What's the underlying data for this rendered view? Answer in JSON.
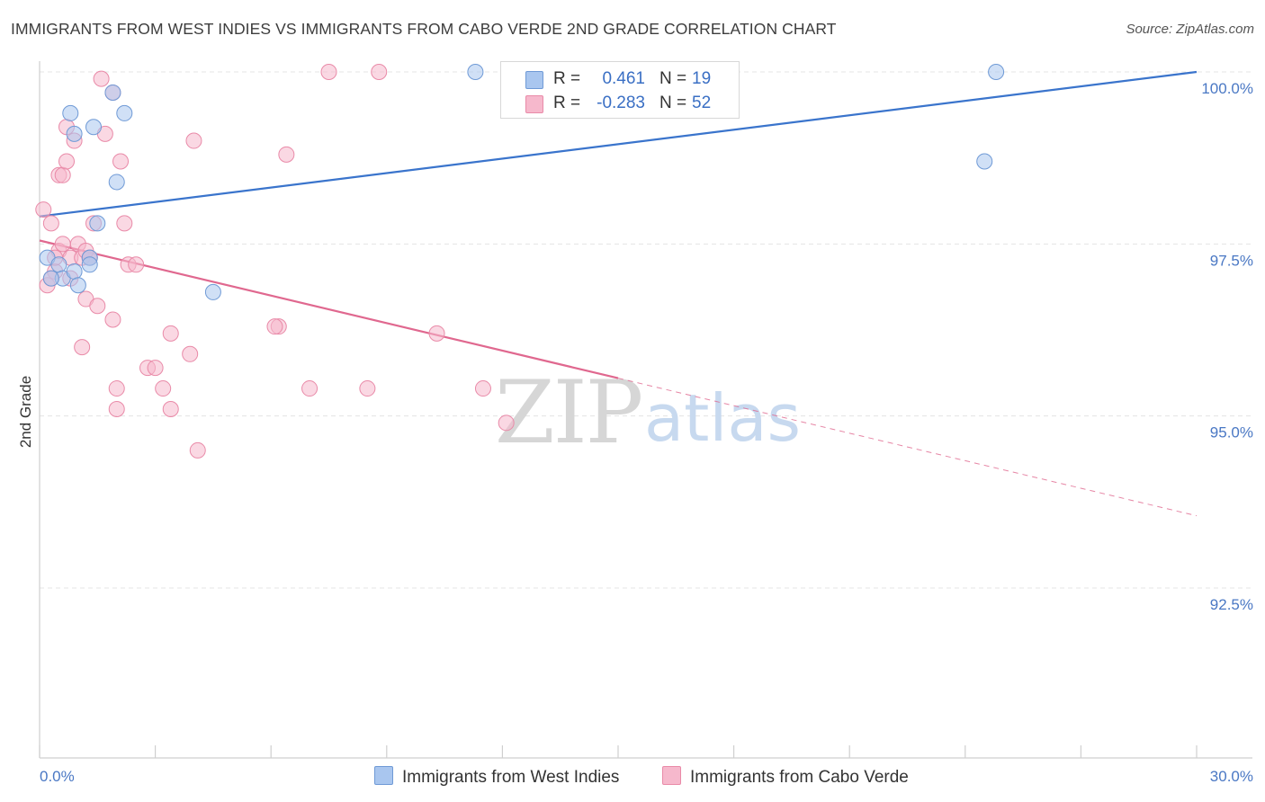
{
  "title": "IMMIGRANTS FROM WEST INDIES VS IMMIGRANTS FROM CABO VERDE 2ND GRADE CORRELATION CHART",
  "source": "Source: ZipAtlas.com",
  "watermark": {
    "zip": "ZIP",
    "atlas": "atlas"
  },
  "colors": {
    "blue_fill": "#a9c6ef",
    "blue_stroke": "#6f9ad6",
    "blue_line": "#3a74cc",
    "pink_fill": "#f6b8cc",
    "pink_stroke": "#e98aa8",
    "pink_line": "#e0688f",
    "tick_text": "#4a78c4"
  },
  "legend": {
    "rows": [
      {
        "r_label": "R =",
        "r_value": "0.461",
        "n_label": "N =",
        "n_value": "19",
        "color": "#a9c6ef"
      },
      {
        "r_label": "R =",
        "r_value": "-0.283",
        "n_label": "N =",
        "n_value": "52",
        "color": "#f6b8cc"
      }
    ]
  },
  "bottom_legend": [
    {
      "label": "Immigrants from West Indies",
      "color": "#a9c6ef"
    },
    {
      "label": "Immigrants from Cabo Verde",
      "color": "#f6b8cc"
    }
  ],
  "chart_data": {
    "type": "scatter",
    "title": "IMMIGRANTS FROM WEST INDIES VS IMMIGRANTS FROM CABO VERDE 2ND GRADE CORRELATION CHART",
    "xlabel": "",
    "ylabel": "2nd Grade",
    "xlim": [
      0,
      30
    ],
    "ylim": [
      90.0,
      100.3
    ],
    "x_tick_labels": [
      {
        "value": 0,
        "label": "0.0%"
      },
      {
        "value": 30,
        "label": "30.0%"
      }
    ],
    "x_minor_ticks": [
      0,
      3,
      6,
      9,
      12,
      15,
      18,
      21,
      24,
      27,
      30
    ],
    "y_ticks": [
      {
        "value": 100.0,
        "label": "100.0%"
      },
      {
        "value": 97.5,
        "label": "97.5%"
      },
      {
        "value": 95.0,
        "label": "95.0%"
      },
      {
        "value": 92.5,
        "label": "92.5%"
      }
    ],
    "series": [
      {
        "name": "Immigrants from West Indies",
        "r": 0.461,
        "n": 19,
        "points": [
          [
            0.2,
            97.3
          ],
          [
            0.5,
            97.2
          ],
          [
            0.6,
            97.0
          ],
          [
            0.9,
            97.1
          ],
          [
            0.8,
            99.4
          ],
          [
            0.9,
            99.1
          ],
          [
            1.0,
            96.9
          ],
          [
            1.3,
            97.3
          ],
          [
            1.4,
            99.2
          ],
          [
            1.5,
            97.8
          ],
          [
            1.9,
            99.7
          ],
          [
            2.2,
            99.4
          ],
          [
            2.0,
            98.4
          ],
          [
            0.3,
            97.0
          ],
          [
            4.5,
            96.8
          ],
          [
            11.3,
            100.0
          ],
          [
            24.8,
            100.0
          ],
          [
            24.5,
            98.7
          ],
          [
            1.3,
            97.2
          ]
        ],
        "trend": {
          "x0": 0,
          "y0": 97.9,
          "x1": 30,
          "y1": 100.0,
          "dashed_from": null
        }
      },
      {
        "name": "Immigrants from Cabo Verde",
        "r": -0.283,
        "n": 52,
        "points": [
          [
            0.1,
            98.0
          ],
          [
            0.3,
            97.8
          ],
          [
            0.4,
            97.1
          ],
          [
            0.2,
            96.9
          ],
          [
            0.5,
            97.4
          ],
          [
            0.5,
            98.5
          ],
          [
            0.6,
            98.5
          ],
          [
            0.7,
            98.7
          ],
          [
            0.8,
            97.0
          ],
          [
            0.8,
            97.3
          ],
          [
            0.7,
            99.2
          ],
          [
            0.9,
            99.0
          ],
          [
            1.0,
            97.5
          ],
          [
            1.1,
            97.3
          ],
          [
            1.2,
            96.7
          ],
          [
            1.3,
            97.3
          ],
          [
            1.2,
            97.4
          ],
          [
            1.4,
            97.8
          ],
          [
            1.5,
            96.6
          ],
          [
            1.6,
            99.9
          ],
          [
            1.7,
            99.1
          ],
          [
            1.9,
            99.7
          ],
          [
            1.9,
            96.4
          ],
          [
            2.1,
            98.7
          ],
          [
            2.2,
            97.8
          ],
          [
            2.3,
            97.2
          ],
          [
            2.5,
            97.2
          ],
          [
            1.1,
            96.0
          ],
          [
            2.0,
            95.4
          ],
          [
            2.0,
            95.1
          ],
          [
            2.8,
            95.7
          ],
          [
            3.0,
            95.7
          ],
          [
            3.2,
            95.4
          ],
          [
            3.4,
            95.1
          ],
          [
            3.4,
            96.2
          ],
          [
            3.9,
            95.9
          ],
          [
            4.0,
            99.0
          ],
          [
            4.1,
            94.5
          ],
          [
            6.2,
            96.3
          ],
          [
            6.1,
            96.3
          ],
          [
            6.4,
            98.8
          ],
          [
            7.0,
            95.4
          ],
          [
            7.5,
            100.0
          ],
          [
            8.5,
            95.4
          ],
          [
            8.8,
            100.0
          ],
          [
            10.3,
            96.2
          ],
          [
            11.5,
            95.4
          ],
          [
            12.1,
            94.9
          ],
          [
            0.3,
            97.0
          ],
          [
            0.4,
            97.3
          ],
          [
            1.3,
            97.3
          ],
          [
            0.6,
            97.5
          ]
        ],
        "trend": {
          "x0": 0,
          "y0": 97.55,
          "x1": 30,
          "y1": 93.55,
          "dashed_from": 15.0
        }
      }
    ]
  }
}
